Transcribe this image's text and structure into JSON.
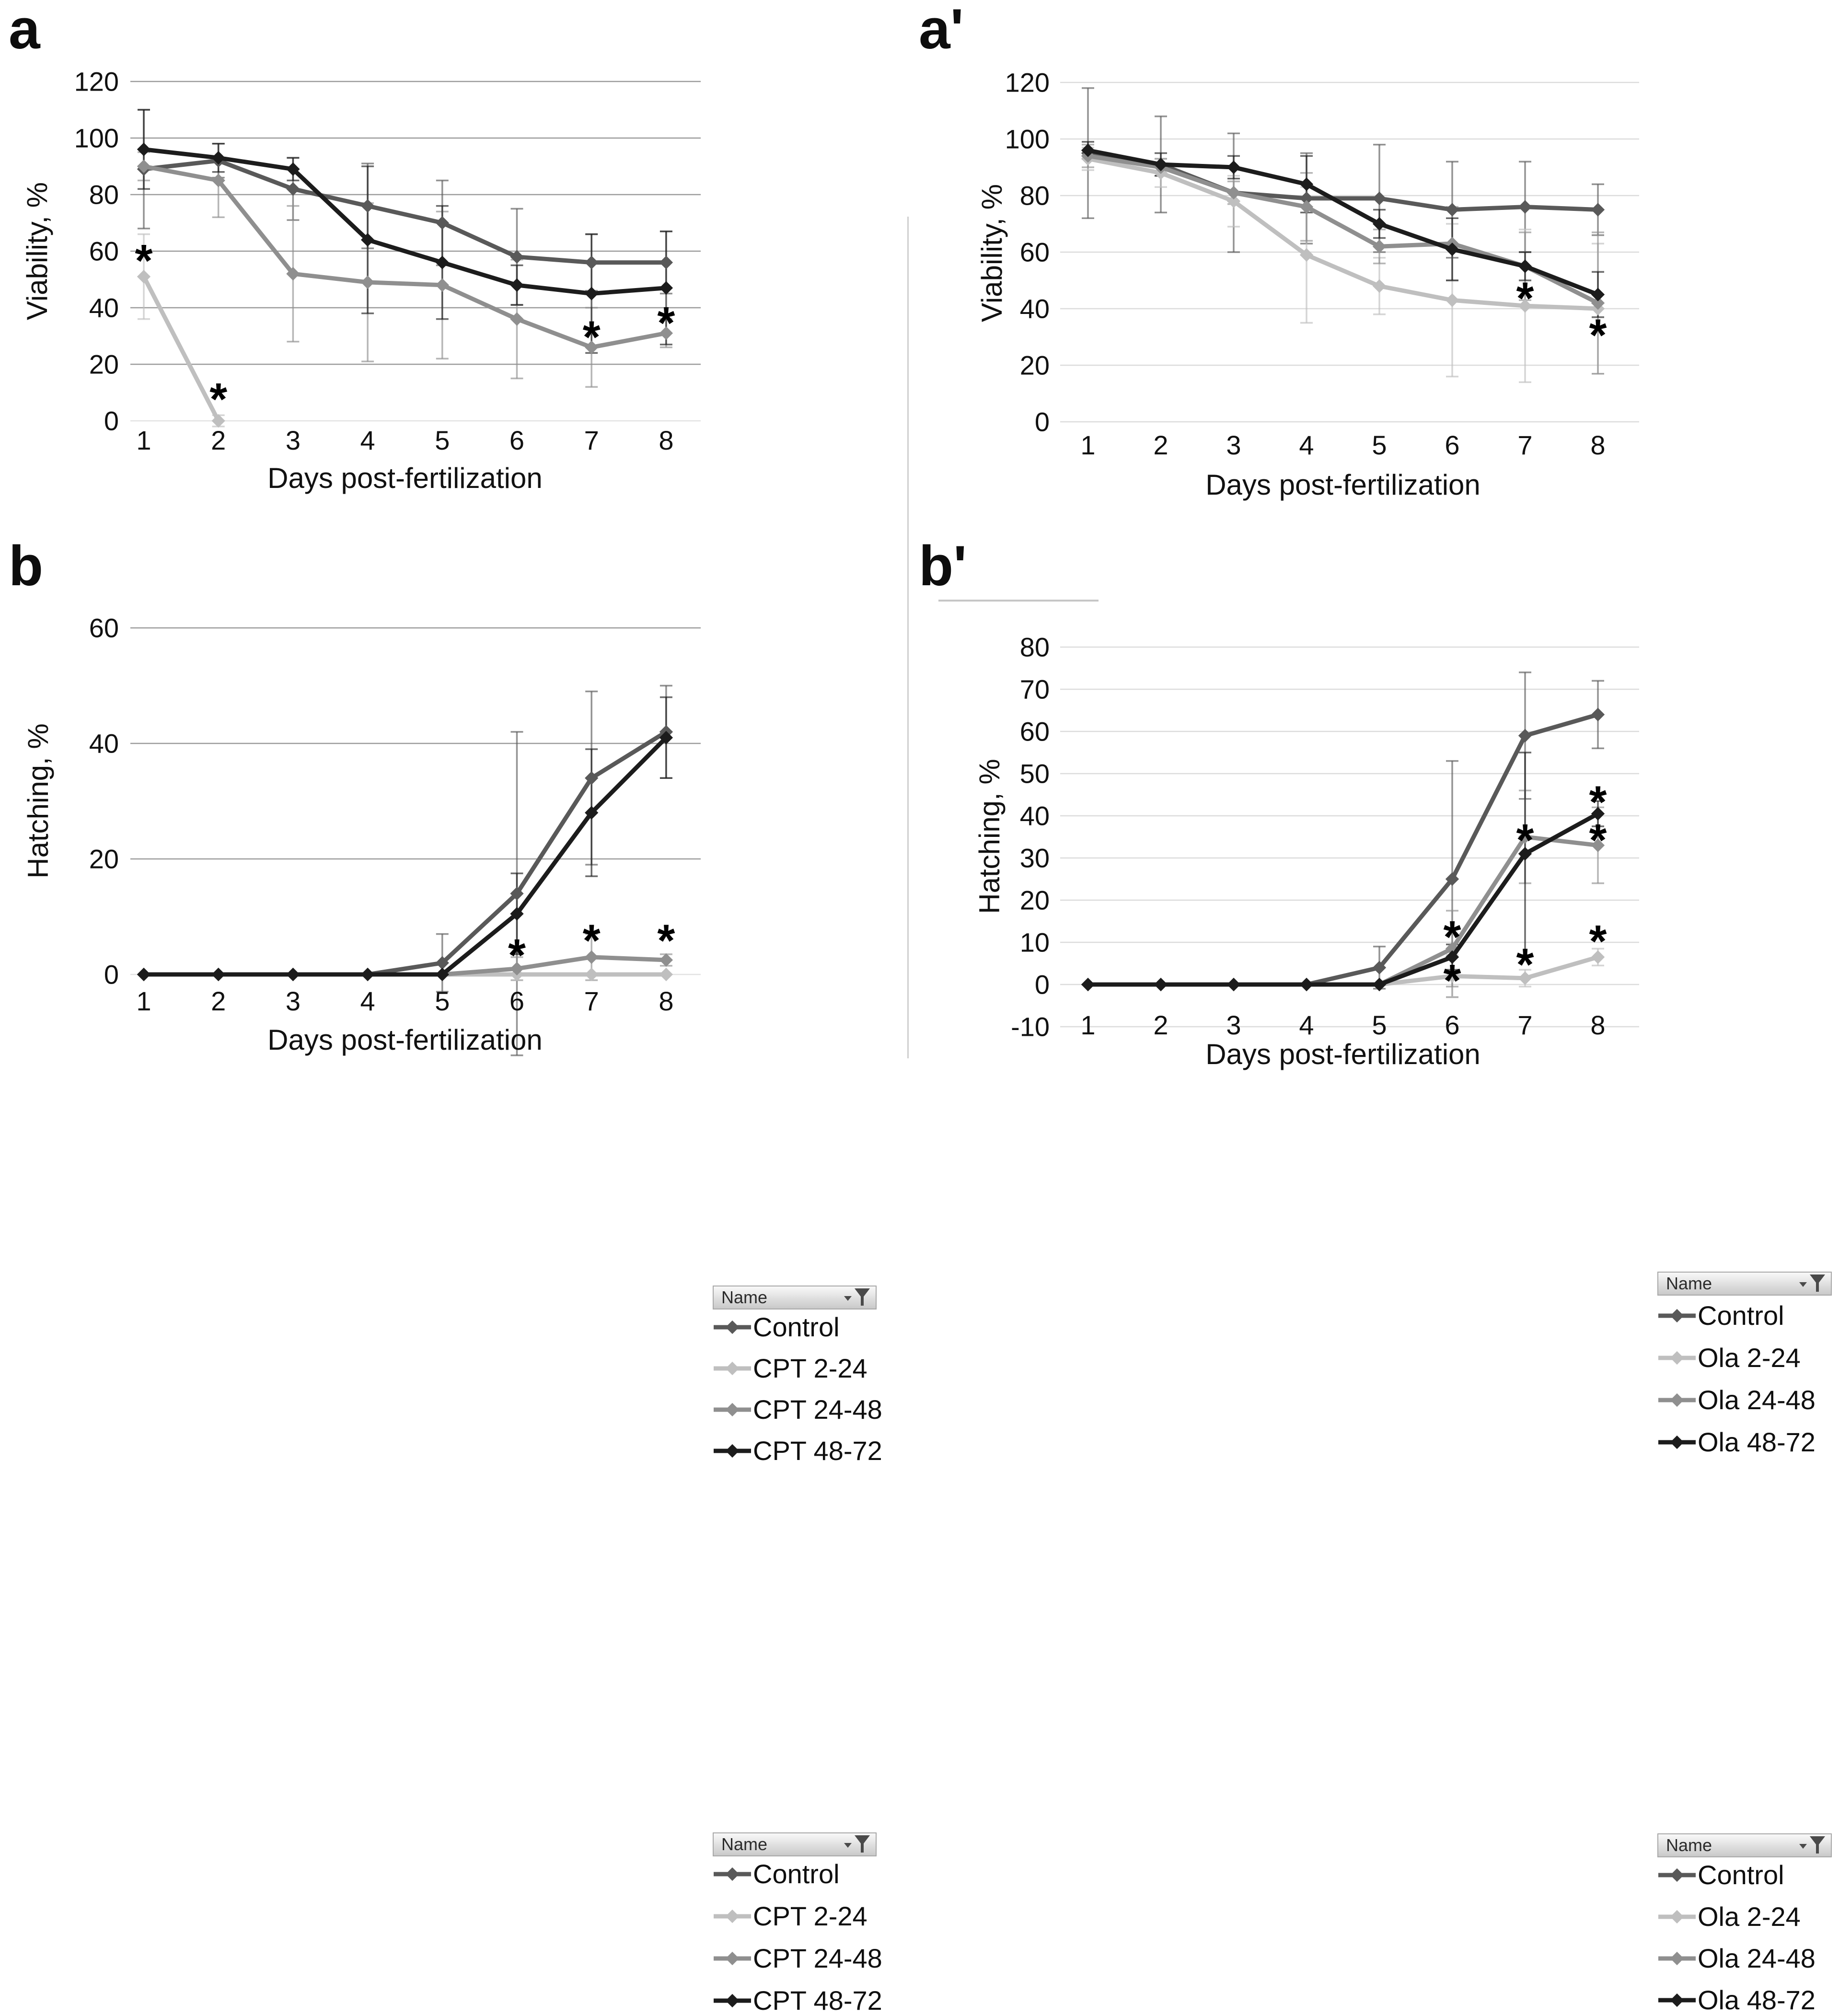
{
  "legend_header": "Name",
  "xlabel": "Days post-fertilization",
  "days": [
    1,
    2,
    3,
    4,
    5,
    6,
    7,
    8
  ],
  "colors": {
    "control": "#595959",
    "treat_2_24": "#bfbfbf",
    "treat_24_48": "#8f8f8f",
    "treat_48_72": "#1c1c1c",
    "grid_dark": "#9c9c9c",
    "grid_light": "#dcdcdc",
    "zero_line": "#e2e2e2",
    "text": "#111111",
    "funnel_icon": "#4a4a4a"
  },
  "chart_data": [
    {
      "id": "a",
      "panel_label": "a",
      "type": "line",
      "xlabel": "Days post-fertilization",
      "ylabel": "Viability, %",
      "x": [
        1,
        2,
        3,
        4,
        5,
        6,
        7,
        8
      ],
      "ylim": [
        0,
        120
      ],
      "ytick_step": 20,
      "grid": "horizontal",
      "legend_position": "right",
      "legend_header": "Name",
      "series": [
        {
          "name": "Control",
          "color_key": "control",
          "values": [
            89,
            92,
            82,
            76,
            70,
            58,
            56,
            56
          ],
          "errors": [
            21,
            6,
            11,
            15,
            15,
            17,
            10,
            11
          ]
        },
        {
          "name": "CPT 2-24",
          "color_key": "treat_2_24",
          "values": [
            51,
            0,
            null,
            null,
            null,
            null,
            null,
            null
          ],
          "errors": [
            15,
            2,
            null,
            null,
            null,
            null,
            null,
            null
          ]
        },
        {
          "name": "CPT 24-48",
          "color_key": "treat_24_48",
          "values": [
            90,
            85,
            52,
            49,
            48,
            36,
            26,
            31
          ],
          "errors": [
            5,
            13,
            24,
            28,
            26,
            21,
            14,
            5
          ]
        },
        {
          "name": "CPT 48-72",
          "color_key": "treat_48_72",
          "values": [
            96,
            93,
            89,
            64,
            56,
            48,
            45,
            47
          ],
          "errors": [
            14,
            5,
            4,
            26,
            20,
            7,
            21,
            20
          ]
        }
      ],
      "annotations": [
        {
          "symbol": "*",
          "day": 1,
          "value": 60
        },
        {
          "symbol": "*",
          "day": 2,
          "value": 11
        },
        {
          "symbol": "*",
          "day": 7,
          "value": 33
        },
        {
          "symbol": "*",
          "day": 8,
          "value": 38
        }
      ]
    },
    {
      "id": "a2",
      "panel_label": "a'",
      "type": "line",
      "xlabel": "Days post-fertilization",
      "ylabel": "Viability, %",
      "x": [
        1,
        2,
        3,
        4,
        5,
        6,
        7,
        8
      ],
      "ylim": [
        0,
        120
      ],
      "ytick_step": 20,
      "grid": "horizontal",
      "legend_position": "right",
      "legend_header": "Name",
      "series": [
        {
          "name": "Control",
          "color_key": "control",
          "values": [
            95,
            91,
            81,
            79,
            79,
            75,
            76,
            75
          ],
          "errors": [
            23,
            17,
            21,
            16,
            19,
            17,
            16,
            9
          ]
        },
        {
          "name": "Ola 2-24",
          "color_key": "treat_2_24",
          "values": [
            93,
            88,
            78,
            59,
            48,
            43,
            41,
            40
          ],
          "errors": [
            4,
            5,
            9,
            24,
            10,
            27,
            27,
            23
          ]
        },
        {
          "name": "Ola 24-48",
          "color_key": "treat_24_48",
          "values": [
            94,
            90,
            81,
            76,
            62,
            63,
            55,
            42
          ],
          "errors": [
            4,
            3,
            4,
            12,
            6,
            13,
            12,
            25
          ]
        },
        {
          "name": "Ola 48-72",
          "color_key": "treat_48_72",
          "values": [
            96,
            91,
            90,
            84,
            70,
            61,
            55,
            45
          ],
          "errors": [
            3,
            4,
            4,
            10,
            5,
            11,
            5,
            8
          ]
        }
      ],
      "annotations": [
        {
          "symbol": "*",
          "day": 7,
          "value": 47
        },
        {
          "symbol": "*",
          "day": 8,
          "value": 34
        }
      ]
    },
    {
      "id": "b",
      "panel_label": "b",
      "type": "line",
      "xlabel": "Days post-fertilization",
      "ylabel": "Hatching, %",
      "x": [
        1,
        2,
        3,
        4,
        5,
        6,
        7,
        8
      ],
      "ylim": [
        0,
        60
      ],
      "ytick_step": 20,
      "grid": "horizontal",
      "legend_position": "right",
      "legend_header": "Name",
      "series": [
        {
          "name": "Control",
          "color_key": "control",
          "values": [
            0,
            0,
            0,
            0,
            2,
            14,
            34,
            42
          ],
          "errors": [
            0,
            0,
            0,
            0,
            5,
            28,
            15,
            8
          ]
        },
        {
          "name": "CPT 2-24",
          "color_key": "treat_2_24",
          "values": [
            0,
            0,
            0,
            0,
            0,
            0,
            0,
            0
          ],
          "errors": [
            0,
            0,
            0,
            0,
            0,
            0,
            0,
            0
          ]
        },
        {
          "name": "CPT 24-48",
          "color_key": "treat_24_48",
          "values": [
            0,
            0,
            0,
            0,
            0,
            1,
            3,
            2.5
          ],
          "errors": [
            0,
            0,
            0,
            0,
            0,
            2,
            4,
            1
          ]
        },
        {
          "name": "CPT 48-72",
          "color_key": "treat_48_72",
          "values": [
            0,
            0,
            0,
            0,
            0,
            10.5,
            28,
            41
          ],
          "errors": [
            0,
            0,
            0,
            0,
            0,
            7,
            11,
            7
          ]
        }
      ],
      "annotations": [
        {
          "symbol": "*",
          "day": 6,
          "value": 5
        },
        {
          "symbol": "*",
          "day": 7,
          "value": 7.5
        },
        {
          "symbol": "*",
          "day": 8,
          "value": 7.5
        }
      ]
    },
    {
      "id": "b2",
      "panel_label": "b'",
      "type": "line",
      "xlabel": "Days post-fertilization",
      "ylabel": "Hatching, %",
      "x": [
        1,
        2,
        3,
        4,
        5,
        6,
        7,
        8
      ],
      "ylim": [
        -10,
        80
      ],
      "ytick_step": 10,
      "grid": "horizontal",
      "legend_position": "right",
      "legend_header": "Name",
      "series": [
        {
          "name": "Control",
          "color_key": "control",
          "values": [
            0,
            0,
            0,
            0,
            4,
            25,
            59,
            64
          ],
          "errors": [
            0,
            0,
            0,
            0,
            5,
            28,
            15,
            8
          ]
        },
        {
          "name": "Ola 2-24",
          "color_key": "treat_2_24",
          "values": [
            0,
            0,
            0,
            0,
            0,
            2,
            1.5,
            6.5
          ],
          "errors": [
            0,
            0,
            0,
            0,
            0,
            5,
            2,
            2
          ]
        },
        {
          "name": "Ola 24-48",
          "color_key": "treat_24_48",
          "values": [
            0,
            0,
            0,
            0,
            0,
            8.5,
            35,
            33
          ],
          "errors": [
            0,
            0,
            0,
            0,
            0,
            9,
            11,
            9
          ]
        },
        {
          "name": "Ola 48-72",
          "color_key": "treat_48_72",
          "values": [
            0,
            0,
            0,
            0,
            0,
            6.5,
            31,
            40.5
          ],
          "errors": [
            0,
            0,
            0,
            0,
            0,
            3,
            24,
            3
          ]
        }
      ],
      "annotations": [
        {
          "symbol": "*",
          "day": 6,
          "value": 13.5
        },
        {
          "symbol": "*",
          "day": 6,
          "value": 3.2
        },
        {
          "symbol": "*",
          "day": 7,
          "value": 36.5
        },
        {
          "symbol": "*",
          "day": 7,
          "value": 7
        },
        {
          "symbol": "*",
          "day": 8,
          "value": 45.5
        },
        {
          "symbol": "*",
          "day": 8,
          "value": 36.5
        },
        {
          "symbol": "*",
          "day": 8,
          "value": 12.5
        }
      ]
    }
  ]
}
